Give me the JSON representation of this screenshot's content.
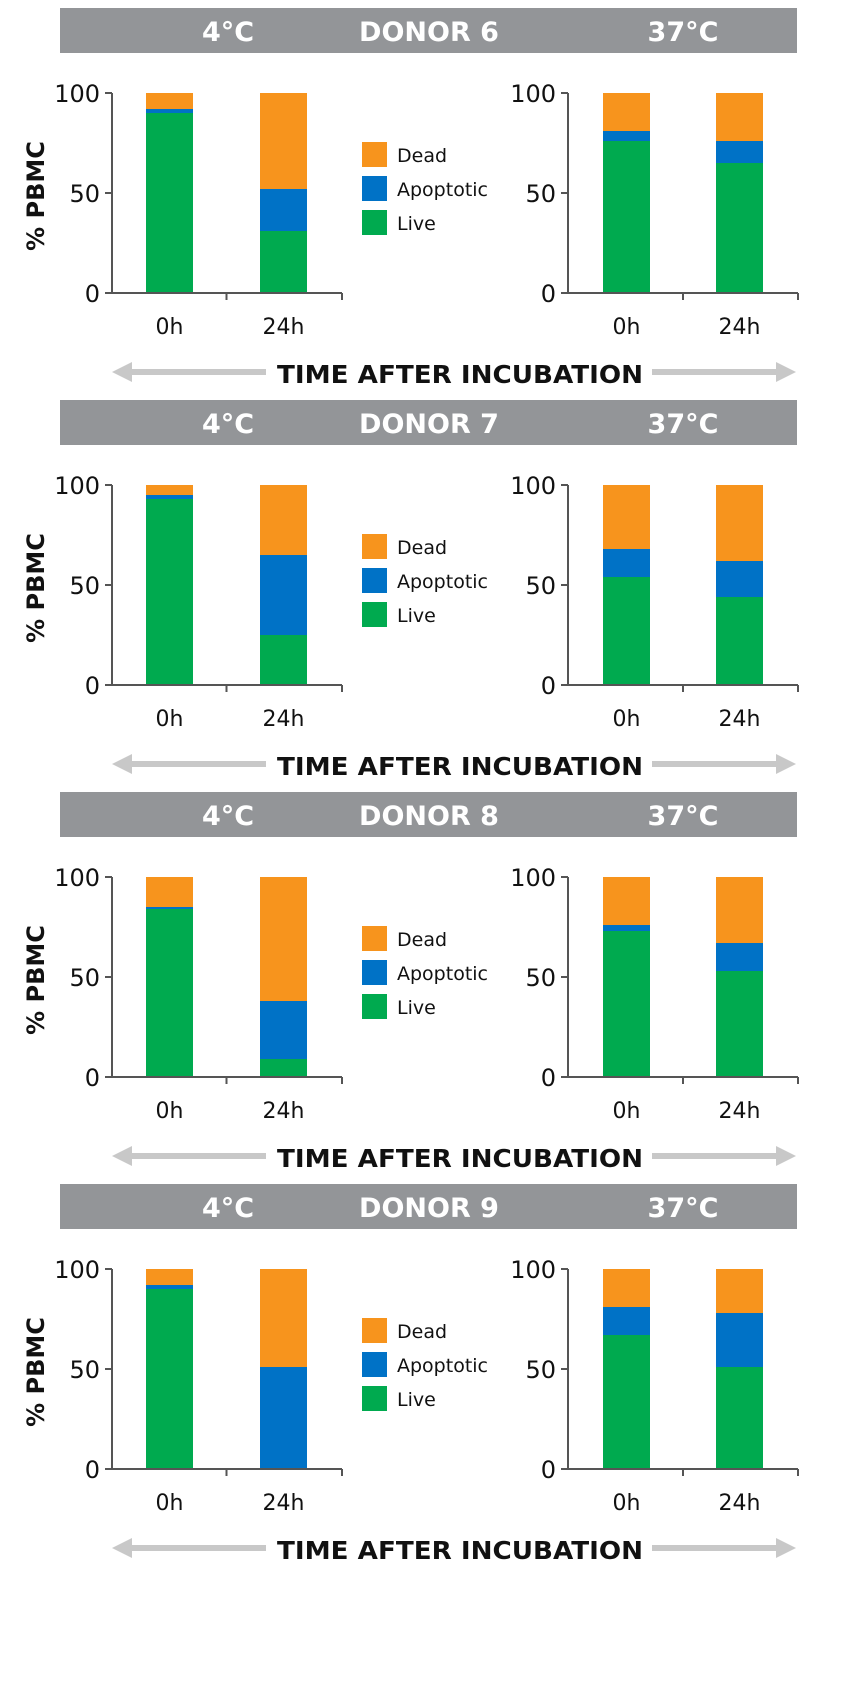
{
  "colors": {
    "dead": "#F7941D",
    "apoptotic": "#0072C6",
    "live": "#00AA4F",
    "banner": "#939598",
    "axis": "#555555",
    "arrow": "#C8C8C8"
  },
  "legend": [
    {
      "label": "Dead",
      "color": "#F7941D"
    },
    {
      "label": "Apoptotic",
      "color": "#0072C6"
    },
    {
      "label": "Live",
      "color": "#00AA4F"
    }
  ],
  "y_axis_label": "% PBMC",
  "x_axis_title": "TIME AFTER INCUBATION",
  "chart_data": [
    {
      "type": "bar",
      "stacked": true,
      "donor": "DONOR 6",
      "condition": "4°C",
      "categories": [
        "0h",
        "24h"
      ],
      "ylim": [
        0,
        100
      ],
      "yticks": [
        0,
        50,
        100
      ],
      "series": [
        {
          "name": "Live",
          "values": [
            90,
            31
          ]
        },
        {
          "name": "Apoptotic",
          "values": [
            2,
            21
          ]
        },
        {
          "name": "Dead",
          "values": [
            8,
            48
          ]
        }
      ]
    },
    {
      "type": "bar",
      "stacked": true,
      "donor": "DONOR 6",
      "condition": "37°C",
      "categories": [
        "0h",
        "24h"
      ],
      "ylim": [
        0,
        100
      ],
      "yticks": [
        0,
        50,
        100
      ],
      "series": [
        {
          "name": "Live",
          "values": [
            76,
            65
          ]
        },
        {
          "name": "Apoptotic",
          "values": [
            5,
            11
          ]
        },
        {
          "name": "Dead",
          "values": [
            19,
            24
          ]
        }
      ]
    },
    {
      "type": "bar",
      "stacked": true,
      "donor": "DONOR 7",
      "condition": "4°C",
      "categories": [
        "0h",
        "24h"
      ],
      "ylim": [
        0,
        100
      ],
      "yticks": [
        0,
        50,
        100
      ],
      "series": [
        {
          "name": "Live",
          "values": [
            93,
            25
          ]
        },
        {
          "name": "Apoptotic",
          "values": [
            2,
            40
          ]
        },
        {
          "name": "Dead",
          "values": [
            5,
            35
          ]
        }
      ]
    },
    {
      "type": "bar",
      "stacked": true,
      "donor": "DONOR 7",
      "condition": "37°C",
      "categories": [
        "0h",
        "24h"
      ],
      "ylim": [
        0,
        100
      ],
      "yticks": [
        0,
        50,
        100
      ],
      "series": [
        {
          "name": "Live",
          "values": [
            54,
            44
          ]
        },
        {
          "name": "Apoptotic",
          "values": [
            14,
            18
          ]
        },
        {
          "name": "Dead",
          "values": [
            32,
            38
          ]
        }
      ]
    },
    {
      "type": "bar",
      "stacked": true,
      "donor": "DONOR 8",
      "condition": "4°C",
      "categories": [
        "0h",
        "24h"
      ],
      "ylim": [
        0,
        100
      ],
      "yticks": [
        0,
        50,
        100
      ],
      "series": [
        {
          "name": "Live",
          "values": [
            84,
            9
          ]
        },
        {
          "name": "Apoptotic",
          "values": [
            1,
            29
          ]
        },
        {
          "name": "Dead",
          "values": [
            15,
            62
          ]
        }
      ]
    },
    {
      "type": "bar",
      "stacked": true,
      "donor": "DONOR 8",
      "condition": "37°C",
      "categories": [
        "0h",
        "24h"
      ],
      "ylim": [
        0,
        100
      ],
      "yticks": [
        0,
        50,
        100
      ],
      "series": [
        {
          "name": "Live",
          "values": [
            73,
            53
          ]
        },
        {
          "name": "Apoptotic",
          "values": [
            3,
            14
          ]
        },
        {
          "name": "Dead",
          "values": [
            24,
            33
          ]
        }
      ]
    },
    {
      "type": "bar",
      "stacked": true,
      "donor": "DONOR 9",
      "condition": "4°C",
      "categories": [
        "0h",
        "24h"
      ],
      "ylim": [
        0,
        100
      ],
      "yticks": [
        0,
        50,
        100
      ],
      "series": [
        {
          "name": "Live",
          "values": [
            90,
            0
          ]
        },
        {
          "name": "Apoptotic",
          "values": [
            2,
            51
          ]
        },
        {
          "name": "Dead",
          "values": [
            8,
            49
          ]
        }
      ]
    },
    {
      "type": "bar",
      "stacked": true,
      "donor": "DONOR 9",
      "condition": "37°C",
      "categories": [
        "0h",
        "24h"
      ],
      "ylim": [
        0,
        100
      ],
      "yticks": [
        0,
        50,
        100
      ],
      "series": [
        {
          "name": "Live",
          "values": [
            67,
            51
          ]
        },
        {
          "name": "Apoptotic",
          "values": [
            14,
            27
          ]
        },
        {
          "name": "Dead",
          "values": [
            19,
            22
          ]
        }
      ]
    }
  ]
}
